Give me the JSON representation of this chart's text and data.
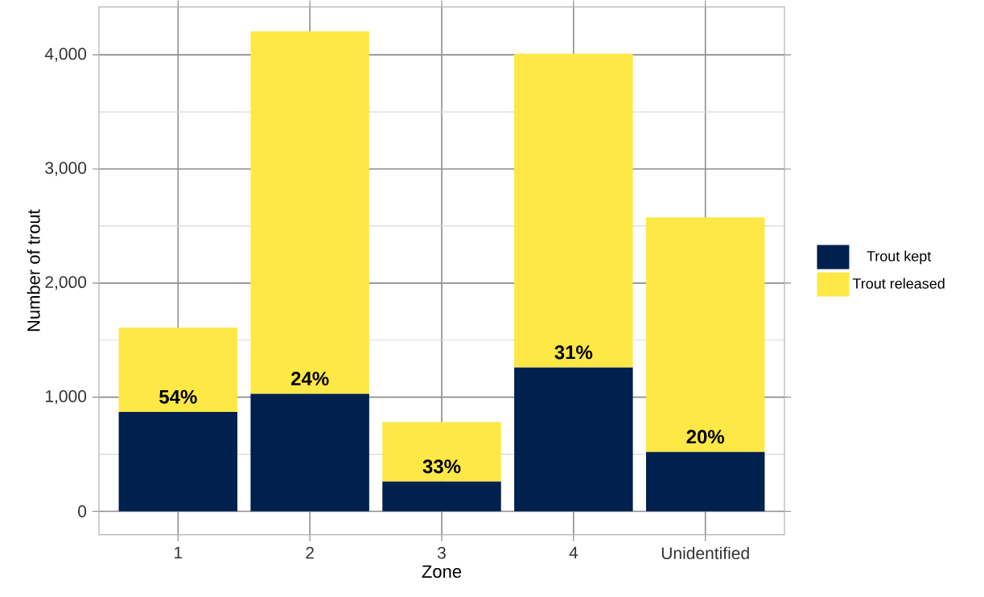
{
  "chart_data": {
    "type": "bar",
    "stacked": true,
    "xlabel": "Zone",
    "ylabel": "Number of trout",
    "categories": [
      "1",
      "2",
      "3",
      "4",
      "Unidentified"
    ],
    "series": [
      {
        "name": "Trout kept",
        "color": "#00204d",
        "values": [
          870,
          1030,
          260,
          1260,
          520
        ]
      },
      {
        "name": "Trout released",
        "color": "#fde845",
        "values": [
          740,
          3175,
          522,
          2750,
          2055
        ]
      }
    ],
    "ylim": [
      -205,
      4420
    ],
    "yticks": [
      {
        "value": 0,
        "label": "0"
      },
      {
        "value": 500,
        "label": null
      },
      {
        "value": 1000,
        "label": "1,000"
      },
      {
        "value": 1500,
        "label": null
      },
      {
        "value": 2000,
        "label": "2,000"
      },
      {
        "value": 2500,
        "label": null
      },
      {
        "value": 3000,
        "label": "3,000"
      },
      {
        "value": 3500,
        "label": null
      },
      {
        "value": 4000,
        "label": "4,000"
      }
    ],
    "grid": true,
    "legend": "right",
    "annotations": [
      {
        "text": "54%",
        "x": "1",
        "y": 870
      },
      {
        "text": "24%",
        "x": "2",
        "y": 1030
      },
      {
        "text": "33%",
        "x": "3",
        "y": 260
      },
      {
        "text": "31%",
        "x": "4",
        "y": 1260
      },
      {
        "text": "20%",
        "x": "Unidentified",
        "y": 520
      }
    ]
  }
}
